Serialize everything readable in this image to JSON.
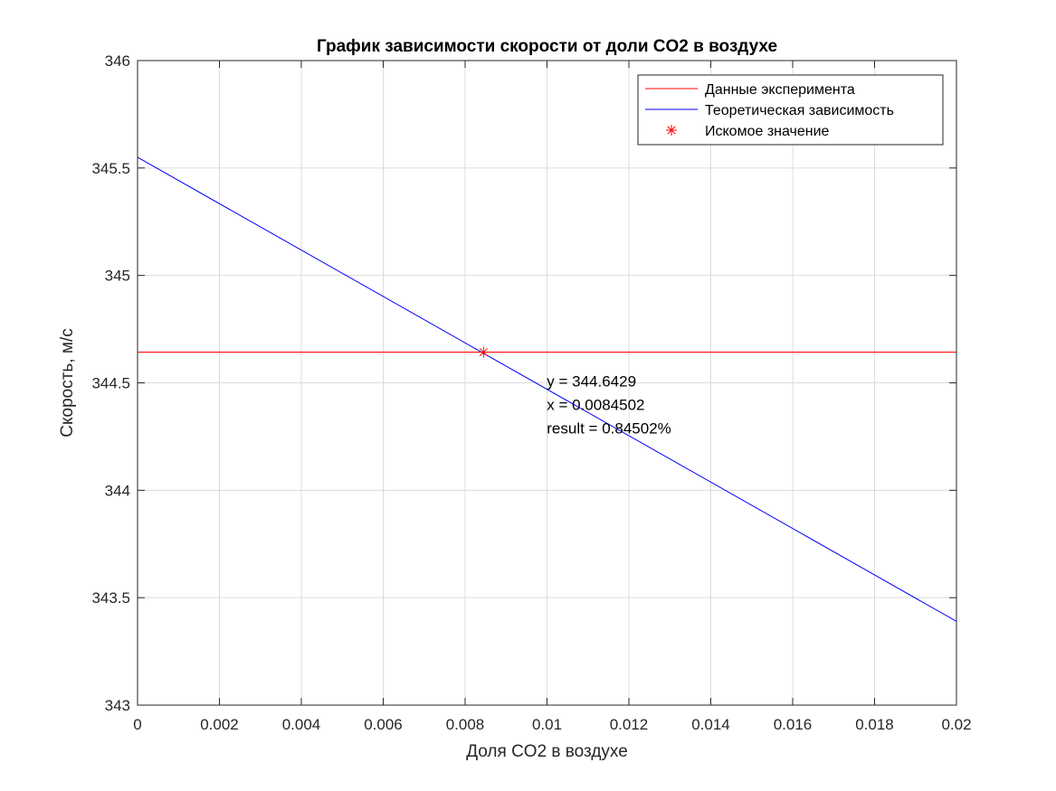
{
  "chart_data": {
    "type": "line",
    "title": "График зависимости скорости от доли CO2 в воздухе",
    "xlabel": "Доля CO2 в воздухе",
    "ylabel": "Скорость, м/с",
    "xlim": [
      0,
      0.02
    ],
    "ylim": [
      343,
      346
    ],
    "x_ticks": [
      0,
      0.002,
      0.004,
      0.006,
      0.008,
      0.01,
      0.012,
      0.014,
      0.016,
      0.018,
      0.02
    ],
    "x_tick_labels": [
      "0",
      "0.002",
      "0.004",
      "0.006",
      "0.008",
      "0.01",
      "0.012",
      "0.014",
      "0.016",
      "0.018",
      "0.02"
    ],
    "y_ticks": [
      343,
      343.5,
      344,
      344.5,
      345,
      345.5,
      346
    ],
    "y_tick_labels": [
      "343",
      "343.5",
      "344",
      "344.5",
      "345",
      "345.5",
      "346"
    ],
    "grid": true,
    "legend_position": "top-right",
    "series": [
      {
        "name": "Данные эксперимента",
        "color": "#ff0000",
        "style": "line",
        "x": [
          0,
          0.02
        ],
        "y": [
          344.6429,
          344.6429
        ]
      },
      {
        "name": "Теоретическая зависимость",
        "color": "#0000ff",
        "style": "line",
        "x": [
          0,
          0.02
        ],
        "y": [
          345.55,
          343.39
        ]
      },
      {
        "name": "Искомое значение",
        "color": "#ff0000",
        "style": "marker-asterisk",
        "x": [
          0.0084502
        ],
        "y": [
          344.6429
        ]
      }
    ],
    "annotation": {
      "lines": [
        "y = 344.6429",
        "x = 0.0084502",
        "result = 0.84502%"
      ],
      "anchor_x": 0.005,
      "anchor_y": 344.4
    }
  }
}
